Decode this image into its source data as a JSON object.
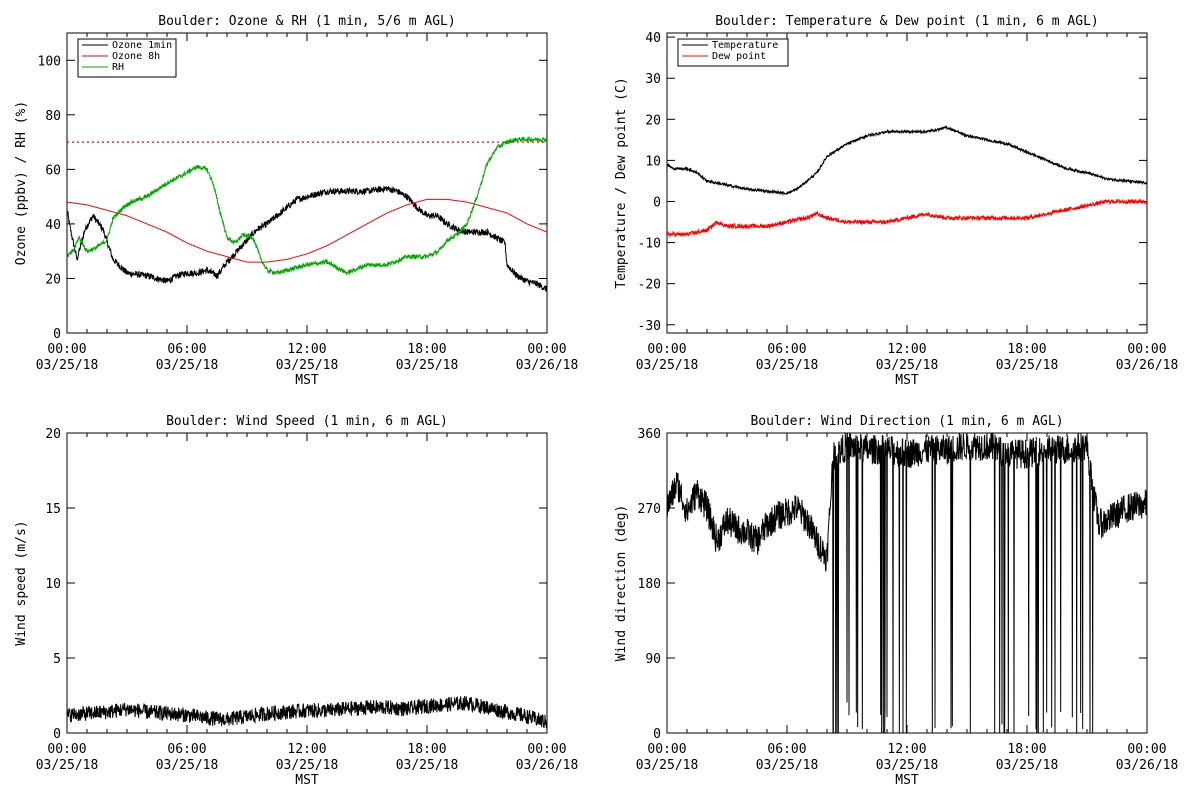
{
  "chart_data": [
    {
      "type": "line",
      "title": "Boulder: Ozone & RH (1 min, 5/6 m AGL)",
      "xlabel": "MST",
      "ylabel": "Ozone (ppbv) / RH (%)",
      "xlim": [
        0,
        24
      ],
      "ylim": [
        0,
        110
      ],
      "yticks": [
        0,
        20,
        40,
        60,
        80,
        100
      ],
      "xticks": [
        0,
        6,
        12,
        18,
        24
      ],
      "xtick_labels": [
        [
          "00:00",
          "03/25/18"
        ],
        [
          "06:00",
          "03/25/18"
        ],
        [
          "12:00",
          "03/25/18"
        ],
        [
          "18:00",
          "03/25/18"
        ],
        [
          "00:00",
          "03/26/18"
        ]
      ],
      "grid": false,
      "legend": {
        "placement": "top-left",
        "entries": [
          "Ozone 1min",
          "Ozone 8h",
          "RH"
        ]
      },
      "reference_lines": [
        {
          "y": 70,
          "color": "#ff0000",
          "style": "dotted"
        }
      ],
      "series": [
        {
          "name": "Ozone 1min",
          "color": "#000000",
          "noise": 1.2,
          "x": [
            0,
            0.2,
            0.5,
            0.9,
            1.3,
            1.8,
            2.3,
            3,
            4,
            4.5,
            5,
            5.5,
            6,
            6.5,
            7,
            7.5,
            8,
            8.5,
            9,
            9.5,
            10,
            10.5,
            11,
            11.5,
            12,
            12.5,
            13,
            14,
            15,
            16,
            16.5,
            17,
            17.5,
            18,
            18.5,
            19,
            19.5,
            20,
            21,
            21.9,
            22,
            22.5,
            23,
            23.5,
            24
          ],
          "y": [
            45,
            37,
            27,
            38,
            43,
            38,
            27,
            22,
            21,
            20,
            19,
            21,
            22,
            22,
            23,
            21,
            26,
            30,
            34,
            38,
            40,
            43,
            46,
            49,
            50,
            51,
            52,
            52,
            52,
            53,
            52,
            50,
            46,
            43,
            43,
            40,
            38,
            37,
            37,
            33,
            25,
            21,
            19,
            18,
            16
          ]
        },
        {
          "name": "Ozone 8h",
          "color": "#ff0000",
          "noise": 0,
          "x": [
            0,
            1,
            2,
            3,
            4,
            5,
            6,
            7,
            8,
            9,
            10,
            11,
            12,
            13,
            14,
            15,
            16,
            17,
            18,
            19,
            20,
            21,
            22,
            23,
            24
          ],
          "y": [
            48,
            47,
            45,
            43,
            40,
            37,
            33,
            30,
            28,
            26,
            26,
            27,
            29,
            32,
            36,
            40,
            44,
            47,
            49,
            49,
            48,
            46,
            44,
            40,
            37
          ]
        },
        {
          "name": "RH",
          "color": "#00aa00",
          "noise": 0.8,
          "x": [
            0,
            0.3,
            0.6,
            1,
            1.4,
            2,
            2.3,
            2.8,
            3.2,
            4,
            5,
            5.8,
            6.5,
            7,
            7.3,
            7.6,
            8,
            8.4,
            8.8,
            9.3,
            9.7,
            10,
            10.5,
            11,
            12,
            13,
            14,
            15,
            16,
            17,
            18,
            18.6,
            19,
            19.5,
            20,
            20.5,
            21,
            21.5,
            22,
            22.5,
            23,
            24
          ],
          "y": [
            28,
            30,
            35,
            30,
            31,
            34,
            42,
            46,
            48,
            50,
            55,
            58,
            61,
            60,
            55,
            46,
            35,
            33,
            36,
            35,
            27,
            23,
            22,
            23,
            25,
            26,
            22,
            25,
            25,
            28,
            28,
            30,
            34,
            36,
            40,
            50,
            62,
            68,
            70,
            71,
            71,
            71
          ]
        }
      ]
    },
    {
      "type": "line",
      "title": "Boulder: Temperature & Dew point (1 min, 6 m AGL)",
      "xlabel": "MST",
      "ylabel": "Temperature / Dew point (C)",
      "xlim": [
        0,
        24
      ],
      "ylim": [
        -32,
        41
      ],
      "yticks": [
        -30,
        -20,
        -10,
        0,
        10,
        20,
        30,
        40
      ],
      "xticks": [
        0,
        6,
        12,
        18,
        24
      ],
      "xtick_labels": [
        [
          "00:00",
          "03/25/18"
        ],
        [
          "06:00",
          "03/25/18"
        ],
        [
          "12:00",
          "03/25/18"
        ],
        [
          "18:00",
          "03/25/18"
        ],
        [
          "00:00",
          "03/26/18"
        ]
      ],
      "grid": false,
      "legend": {
        "placement": "top-left",
        "entries": [
          "Temperature",
          "Dew point"
        ]
      },
      "series": [
        {
          "name": "Temperature",
          "color": "#000000",
          "noise": 0.3,
          "x": [
            0,
            0.3,
            1,
            1.5,
            2,
            3,
            4,
            5,
            6,
            6.5,
            7,
            7.5,
            8,
            9,
            10,
            11,
            12,
            13,
            14,
            14.5,
            15,
            16,
            17,
            18,
            19,
            20,
            21,
            22,
            23,
            24
          ],
          "y": [
            9,
            8,
            8,
            7,
            5,
            4,
            3,
            2.5,
            2,
            3,
            5,
            7,
            11,
            14,
            16,
            17,
            17,
            17,
            18,
            17,
            16,
            15,
            14,
            12,
            10,
            8,
            7,
            5.5,
            5,
            4.5
          ]
        },
        {
          "name": "Dew point",
          "color": "#ff0000",
          "noise": 0.5,
          "x": [
            0,
            1,
            2,
            2.5,
            3,
            4,
            5,
            6,
            7,
            7.5,
            8,
            9,
            10,
            11,
            12,
            13,
            14,
            15,
            16,
            17,
            18,
            19,
            20,
            21,
            22,
            23,
            24
          ],
          "y": [
            -8,
            -8,
            -7,
            -5,
            -6,
            -6,
            -6,
            -5,
            -4,
            -3,
            -4,
            -5,
            -5,
            -5,
            -4,
            -3,
            -4,
            -4,
            -4,
            -4,
            -4,
            -3,
            -2,
            -1,
            0,
            0,
            0
          ]
        }
      ]
    },
    {
      "type": "line",
      "title": "Boulder: Wind Speed (1 min, 6 m AGL)",
      "xlabel": "MST",
      "ylabel": "Wind speed (m/s)",
      "xlim": [
        0,
        24
      ],
      "ylim": [
        0,
        20
      ],
      "yticks": [
        0,
        5,
        10,
        15,
        20
      ],
      "xticks": [
        0,
        6,
        12,
        18,
        24
      ],
      "xtick_labels": [
        [
          "00:00",
          "03/25/18"
        ],
        [
          "06:00",
          "03/25/18"
        ],
        [
          "12:00",
          "03/25/18"
        ],
        [
          "18:00",
          "03/25/18"
        ],
        [
          "00:00",
          "03/26/18"
        ]
      ],
      "grid": false,
      "series": [
        {
          "color": "#000000",
          "noise": 0.5,
          "x": [
            0,
            1,
            2,
            3,
            4,
            5,
            6,
            7,
            8,
            9,
            10,
            11,
            12,
            13,
            14,
            15,
            16,
            17,
            18,
            19,
            20,
            21,
            22,
            23,
            24
          ],
          "y": [
            1.2,
            1.3,
            1.4,
            1.6,
            1.4,
            1.3,
            1.2,
            1.0,
            0.9,
            1.1,
            1.3,
            1.4,
            1.5,
            1.5,
            1.6,
            1.7,
            1.7,
            1.6,
            1.8,
            1.9,
            2.0,
            1.7,
            1.4,
            1.1,
            0.7
          ]
        }
      ]
    },
    {
      "type": "line",
      "title": "Boulder: Wind Direction (1 min, 6 m AGL)",
      "xlabel": "MST",
      "ylabel": "Wind direction (deg)",
      "xlim": [
        0,
        24
      ],
      "ylim": [
        0,
        360
      ],
      "yticks": [
        0,
        90,
        180,
        270,
        360
      ],
      "xticks": [
        0,
        6,
        12,
        18,
        24
      ],
      "xtick_labels": [
        [
          "00:00",
          "03/25/18"
        ],
        [
          "06:00",
          "03/25/18"
        ],
        [
          "12:00",
          "03/25/18"
        ],
        [
          "18:00",
          "03/25/18"
        ],
        [
          "00:00",
          "03/26/18"
        ]
      ],
      "grid": false,
      "wrap_periods": [
        [
          8.3,
          21.3
        ]
      ],
      "series": [
        {
          "color": "#000000",
          "noise": 18,
          "x": [
            0,
            0.5,
            1,
            1.5,
            2,
            2.5,
            3,
            3.5,
            4,
            4.5,
            5,
            5.5,
            6,
            6.5,
            7,
            7.5,
            8,
            8.3,
            9,
            10,
            11,
            12,
            13,
            14,
            15,
            16,
            17,
            18,
            19,
            20,
            21,
            21.3,
            21.6,
            22,
            23,
            24
          ],
          "y": [
            270,
            300,
            265,
            290,
            270,
            230,
            255,
            245,
            240,
            230,
            250,
            260,
            265,
            270,
            255,
            230,
            210,
            330,
            345,
            340,
            340,
            335,
            340,
            340,
            345,
            345,
            335,
            335,
            340,
            340,
            345,
            290,
            250,
            255,
            270,
            275
          ]
        }
      ]
    }
  ]
}
